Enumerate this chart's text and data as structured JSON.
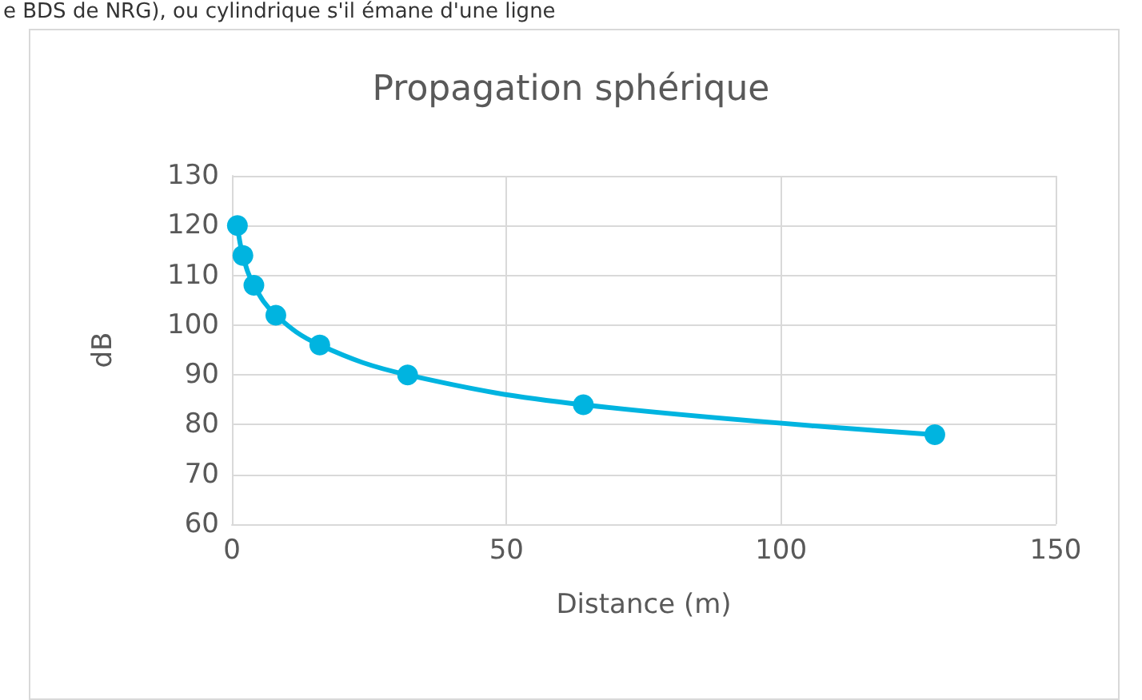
{
  "chart_data": {
    "type": "line",
    "title": "Propagation sphérique",
    "xlabel": "Distance (m)",
    "ylabel": "dB",
    "annotations": [
      "e BDS de NRG), ou cylindrique s'il émane d'une ligne"
    ],
    "x": [
      1,
      2,
      4,
      8,
      16,
      32,
      64,
      128
    ],
    "series": [
      {
        "color": "#00b4e0",
        "values": [
          120,
          114,
          108,
          102,
          96,
          90,
          84,
          78
        ]
      }
    ],
    "xlim": [
      0,
      150
    ],
    "xticks": [
      0,
      50,
      100,
      150
    ],
    "ylim": [
      60,
      130
    ],
    "yticks": [
      60,
      70,
      80,
      90,
      100,
      110,
      120,
      130
    ],
    "grid": true,
    "marker": "circle",
    "line_style": "solid"
  }
}
